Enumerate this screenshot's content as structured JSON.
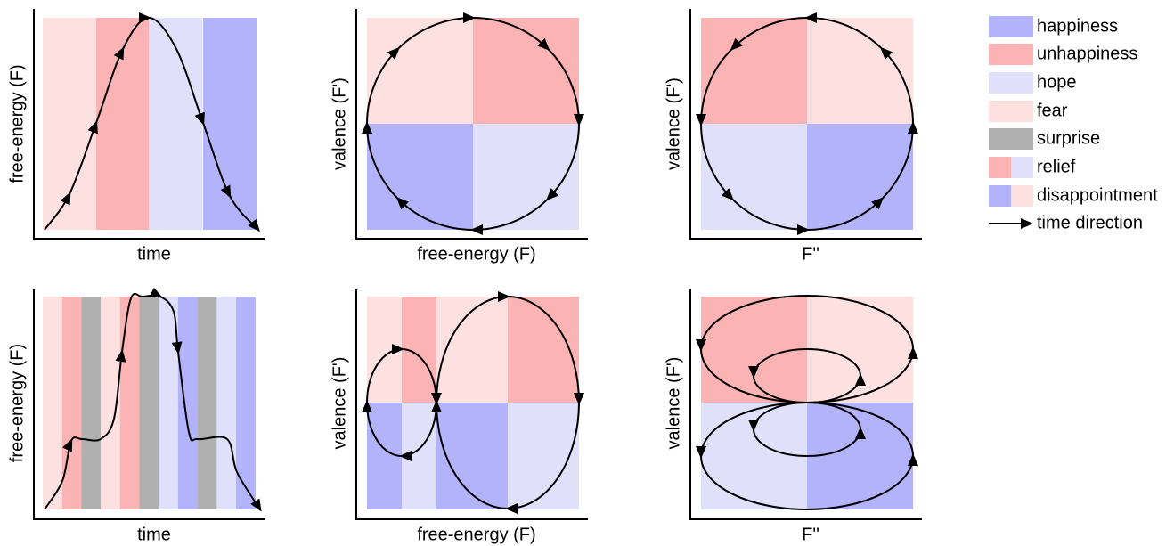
{
  "panels": [
    {
      "x_label": "time",
      "y_label": "free-energy (F)"
    },
    {
      "x_label": "free-energy (F)",
      "y_label": "valence (F')"
    },
    {
      "x_label": "F''",
      "y_label": "valence (F')"
    },
    {
      "x_label": "time",
      "y_label": "free-energy (F)"
    },
    {
      "x_label": "free-energy (F)",
      "y_label": "valence (F')"
    },
    {
      "x_label": "F''",
      "y_label": "valence (F')"
    }
  ],
  "legend": [
    "happiness",
    "unhappiness",
    "hope",
    "fear",
    "surprise",
    "relief",
    "disappointment",
    "time direction"
  ]
}
